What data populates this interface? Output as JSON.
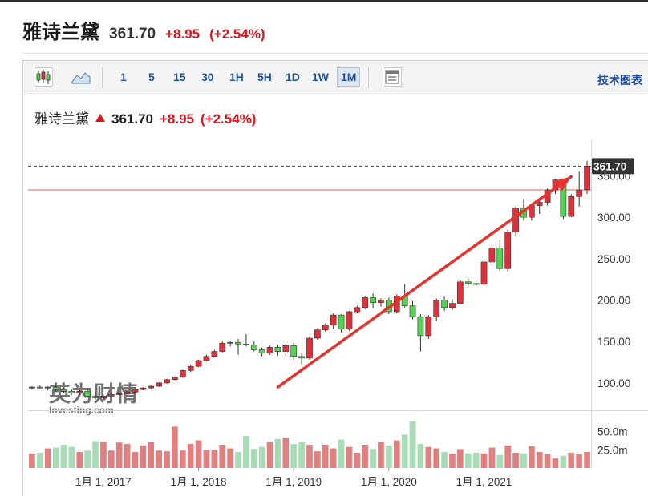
{
  "header": {
    "name": "雅诗兰黛",
    "price": "361.70",
    "change": "+8.95",
    "change_pct": "(+2.54%)"
  },
  "toolbar": {
    "icons": [
      "candlestick-chart-icon",
      "area-chart-icon",
      "layout-icon"
    ],
    "intervals": [
      "1",
      "5",
      "15",
      "30",
      "1H",
      "5H",
      "1D",
      "1W",
      "1M"
    ],
    "active_interval": "1M",
    "tech_chart_label": "技术图表"
  },
  "legend": {
    "name": "雅诗兰黛",
    "price": "361.70",
    "change": "+8.95",
    "change_pct": "(+2.54%)"
  },
  "watermark": {
    "big": "英为财情",
    "small": "Investing.com"
  },
  "colors": {
    "up": "#e0313a",
    "down": "#52d452",
    "vol_up": "#e08080",
    "vol_down": "#a6dcb6",
    "accent": "#1f4f9e",
    "price_label_bg": "#333333"
  },
  "chart_data": {
    "type": "candlestick",
    "interval": "1M",
    "last_price_label": "361.70",
    "y_ticks": [
      100,
      150,
      200,
      250,
      300,
      350
    ],
    "y_tick_labels": [
      "100.00",
      "150.00",
      "200.00",
      "250.00",
      "300.00",
      "350.00"
    ],
    "ylim": [
      67,
      392
    ],
    "x_labels": [
      "1月 1, 2017",
      "1月 1, 2018",
      "1月 1, 2019",
      "1月 1, 2020",
      "1月 1, 2021"
    ],
    "volume_ticks": [
      "25.0m",
      "50.0m"
    ],
    "volume_ylim": [
      0,
      75
    ],
    "candles": [
      {
        "o": 94,
        "h": 96,
        "l": 92,
        "c": 95
      },
      {
        "o": 95,
        "h": 97,
        "l": 93,
        "c": 94
      },
      {
        "o": 94,
        "h": 96,
        "l": 91,
        "c": 95
      },
      {
        "o": 95,
        "h": 96,
        "l": 90,
        "c": 92
      },
      {
        "o": 92,
        "h": 94,
        "l": 88,
        "c": 90
      },
      {
        "o": 90,
        "h": 92,
        "l": 86,
        "c": 88
      },
      {
        "o": 88,
        "h": 91,
        "l": 86,
        "c": 90
      },
      {
        "o": 90,
        "h": 92,
        "l": 82,
        "c": 84
      },
      {
        "o": 84,
        "h": 89,
        "l": 80,
        "c": 82
      },
      {
        "o": 82,
        "h": 86,
        "l": 79,
        "c": 84
      },
      {
        "o": 84,
        "h": 88,
        "l": 83,
        "c": 86
      },
      {
        "o": 86,
        "h": 89,
        "l": 85,
        "c": 87
      },
      {
        "o": 87,
        "h": 90,
        "l": 86,
        "c": 89
      },
      {
        "o": 89,
        "h": 93,
        "l": 88,
        "c": 92
      },
      {
        "o": 92,
        "h": 95,
        "l": 91,
        "c": 94
      },
      {
        "o": 94,
        "h": 97,
        "l": 93,
        "c": 96
      },
      {
        "o": 96,
        "h": 101,
        "l": 95,
        "c": 100
      },
      {
        "o": 100,
        "h": 105,
        "l": 99,
        "c": 104
      },
      {
        "o": 104,
        "h": 108,
        "l": 103,
        "c": 107
      },
      {
        "o": 107,
        "h": 116,
        "l": 106,
        "c": 115
      },
      {
        "o": 115,
        "h": 122,
        "l": 113,
        "c": 120
      },
      {
        "o": 120,
        "h": 128,
        "l": 119,
        "c": 127
      },
      {
        "o": 127,
        "h": 134,
        "l": 126,
        "c": 132
      },
      {
        "o": 132,
        "h": 140,
        "l": 131,
        "c": 138
      },
      {
        "o": 138,
        "h": 150,
        "l": 137,
        "c": 148
      },
      {
        "o": 148,
        "h": 151,
        "l": 144,
        "c": 149
      },
      {
        "o": 149,
        "h": 153,
        "l": 134,
        "c": 147
      },
      {
        "o": 147,
        "h": 159,
        "l": 144,
        "c": 146
      },
      {
        "o": 146,
        "h": 150,
        "l": 138,
        "c": 140
      },
      {
        "o": 140,
        "h": 143,
        "l": 132,
        "c": 136
      },
      {
        "o": 136,
        "h": 145,
        "l": 134,
        "c": 143
      },
      {
        "o": 143,
        "h": 146,
        "l": 133,
        "c": 138
      },
      {
        "o": 138,
        "h": 147,
        "l": 132,
        "c": 145
      },
      {
        "o": 145,
        "h": 149,
        "l": 128,
        "c": 132
      },
      {
        "o": 132,
        "h": 136,
        "l": 122,
        "c": 130
      },
      {
        "o": 130,
        "h": 156,
        "l": 128,
        "c": 154
      },
      {
        "o": 154,
        "h": 166,
        "l": 152,
        "c": 164
      },
      {
        "o": 164,
        "h": 172,
        "l": 162,
        "c": 170
      },
      {
        "o": 170,
        "h": 184,
        "l": 165,
        "c": 182
      },
      {
        "o": 182,
        "h": 183,
        "l": 161,
        "c": 165
      },
      {
        "o": 165,
        "h": 187,
        "l": 163,
        "c": 186
      },
      {
        "o": 186,
        "h": 193,
        "l": 184,
        "c": 191
      },
      {
        "o": 191,
        "h": 205,
        "l": 189,
        "c": 203
      },
      {
        "o": 203,
        "h": 208,
        "l": 190,
        "c": 197
      },
      {
        "o": 197,
        "h": 202,
        "l": 192,
        "c": 200
      },
      {
        "o": 200,
        "h": 203,
        "l": 183,
        "c": 186
      },
      {
        "o": 186,
        "h": 207,
        "l": 184,
        "c": 205
      },
      {
        "o": 205,
        "h": 219,
        "l": 191,
        "c": 193
      },
      {
        "o": 193,
        "h": 199,
        "l": 177,
        "c": 180
      },
      {
        "o": 180,
        "h": 183,
        "l": 138,
        "c": 157
      },
      {
        "o": 157,
        "h": 182,
        "l": 153,
        "c": 180
      },
      {
        "o": 180,
        "h": 202,
        "l": 175,
        "c": 200
      },
      {
        "o": 200,
        "h": 204,
        "l": 187,
        "c": 191
      },
      {
        "o": 191,
        "h": 201,
        "l": 188,
        "c": 196
      },
      {
        "o": 196,
        "h": 224,
        "l": 194,
        "c": 222
      },
      {
        "o": 222,
        "h": 227,
        "l": 216,
        "c": 220
      },
      {
        "o": 220,
        "h": 224,
        "l": 216,
        "c": 219
      },
      {
        "o": 219,
        "h": 248,
        "l": 217,
        "c": 246
      },
      {
        "o": 246,
        "h": 266,
        "l": 241,
        "c": 263
      },
      {
        "o": 263,
        "h": 272,
        "l": 235,
        "c": 238
      },
      {
        "o": 238,
        "h": 285,
        "l": 234,
        "c": 282
      },
      {
        "o": 282,
        "h": 313,
        "l": 278,
        "c": 311
      },
      {
        "o": 311,
        "h": 322,
        "l": 296,
        "c": 300
      },
      {
        "o": 300,
        "h": 316,
        "l": 296,
        "c": 314
      },
      {
        "o": 314,
        "h": 320,
        "l": 304,
        "c": 318
      },
      {
        "o": 318,
        "h": 335,
        "l": 314,
        "c": 333
      },
      {
        "o": 333,
        "h": 346,
        "l": 328,
        "c": 345
      },
      {
        "o": 345,
        "h": 346,
        "l": 298,
        "c": 301
      },
      {
        "o": 301,
        "h": 328,
        "l": 300,
        "c": 325
      },
      {
        "o": 325,
        "h": 355,
        "l": 313,
        "c": 333
      },
      {
        "o": 333,
        "h": 368,
        "l": 328,
        "c": 361.7
      }
    ],
    "volumes": [
      20,
      21,
      27,
      28,
      32,
      29,
      22,
      24,
      37,
      36,
      24,
      35,
      33,
      22,
      31,
      36,
      24,
      23,
      57,
      24,
      33,
      38,
      25,
      25,
      32,
      27,
      22,
      44,
      26,
      29,
      36,
      40,
      41,
      33,
      36,
      32,
      23,
      32,
      27,
      39,
      29,
      21,
      32,
      26,
      36,
      31,
      38,
      46,
      64,
      33,
      29,
      27,
      22,
      20,
      26,
      20,
      21,
      20,
      28,
      18,
      31,
      21,
      20,
      30,
      22,
      19,
      13,
      17,
      21,
      19,
      22
    ]
  }
}
